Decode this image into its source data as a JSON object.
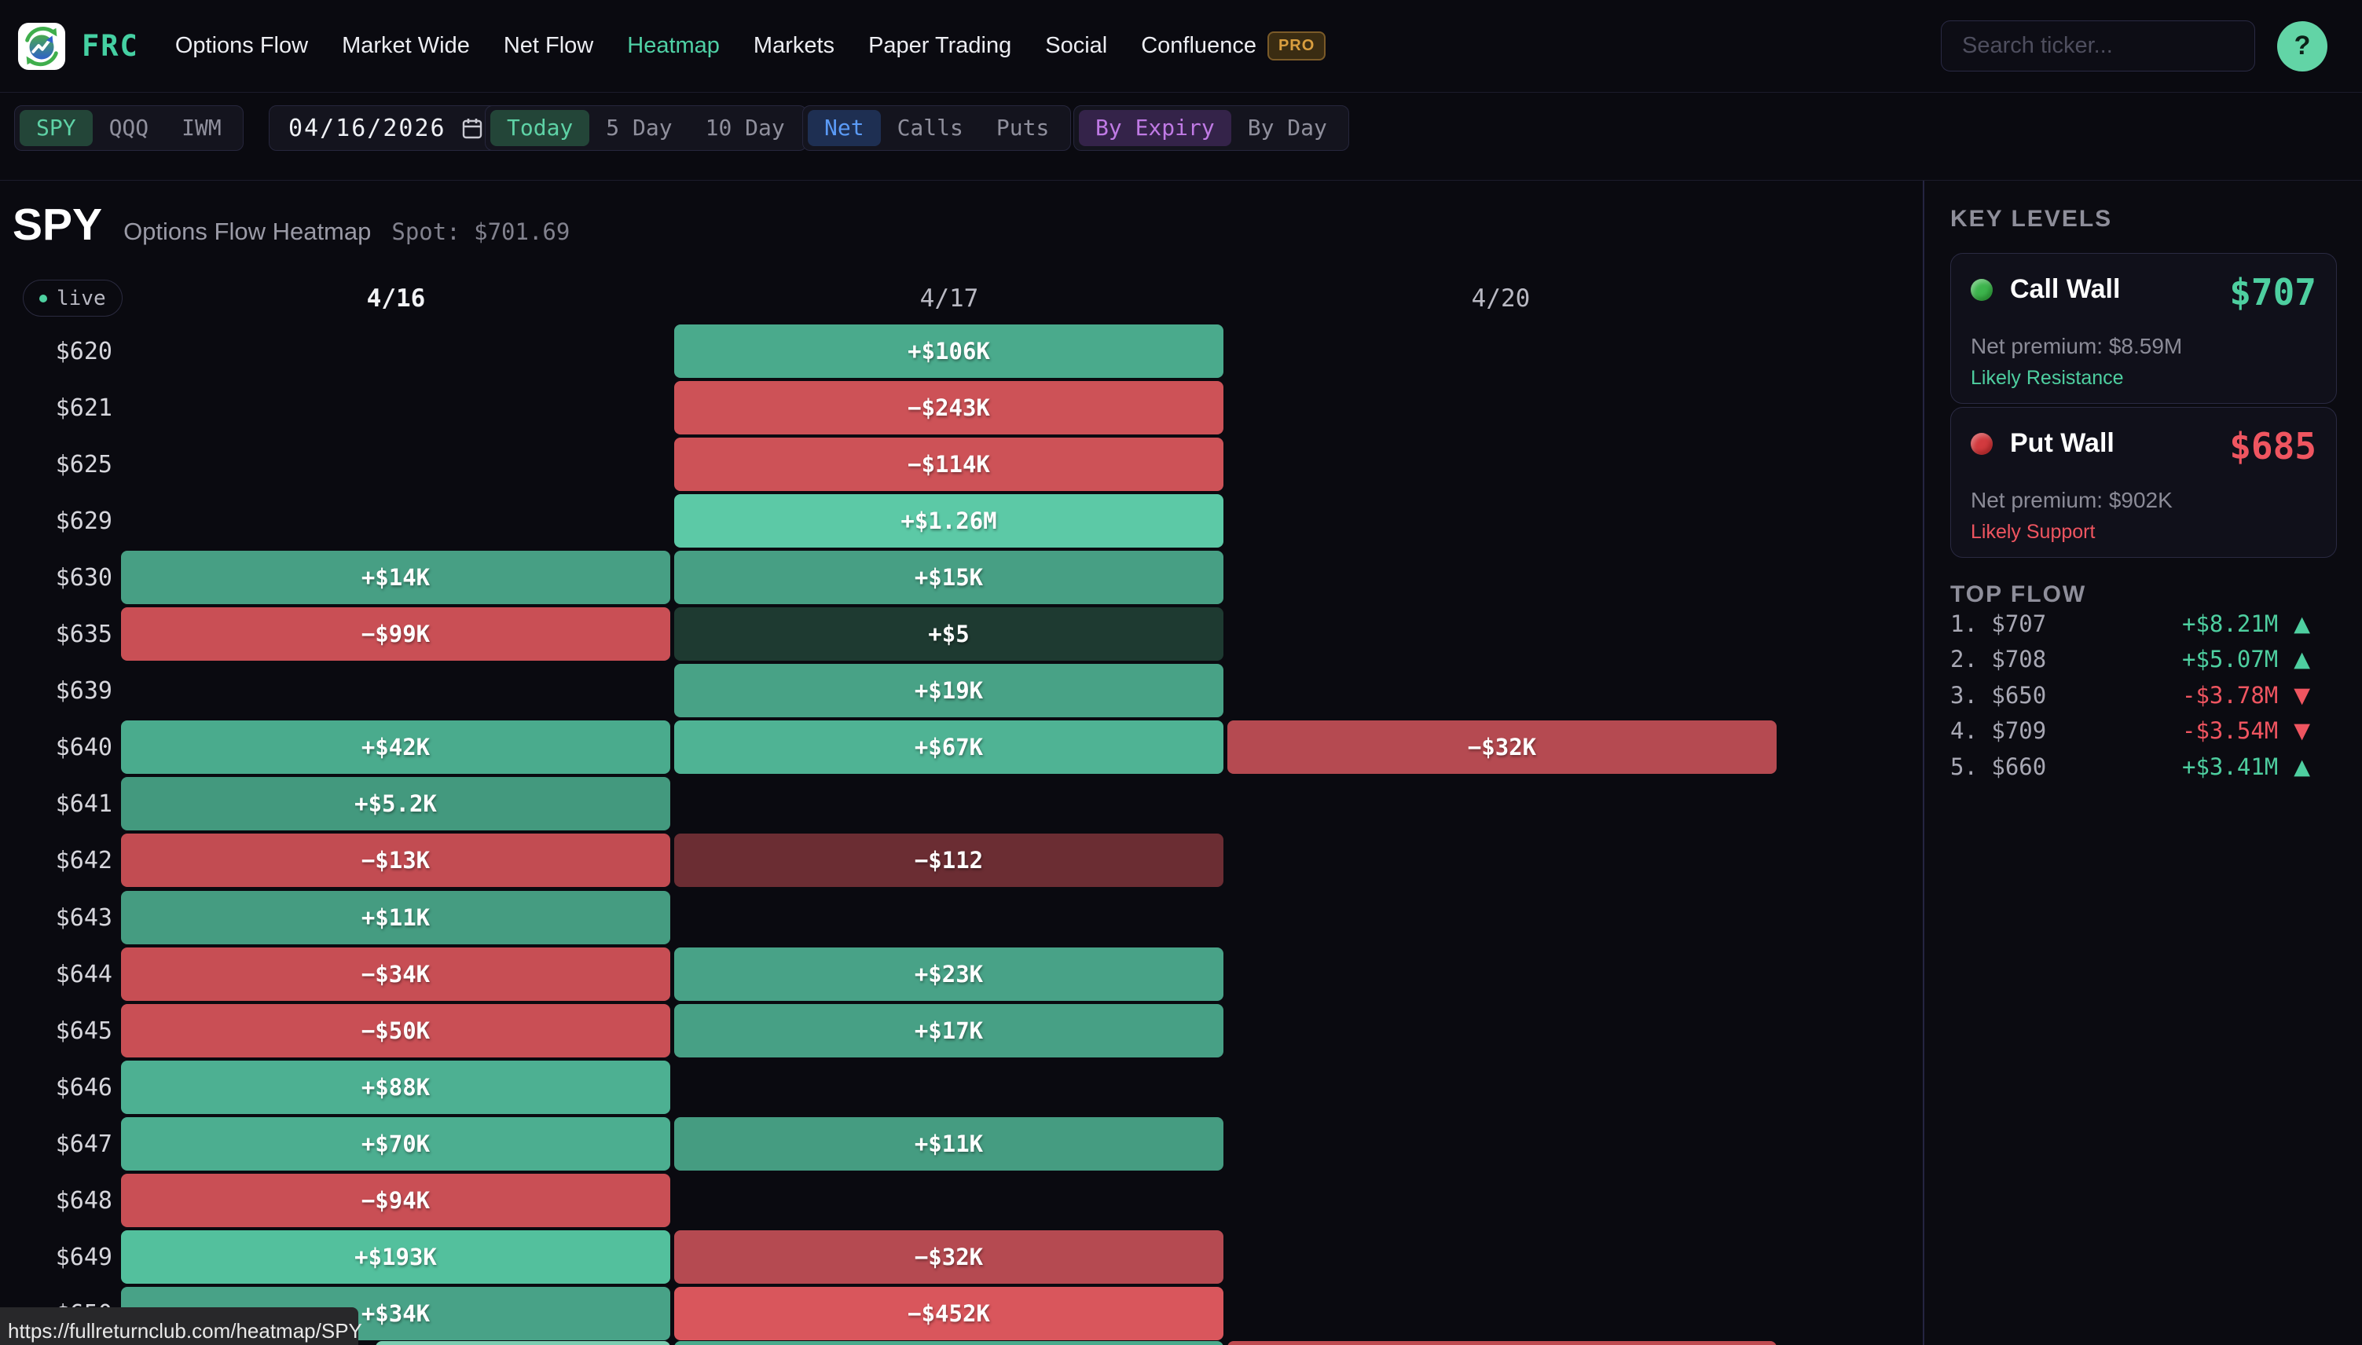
{
  "nav": {
    "brand": "FRC",
    "items": [
      {
        "label": "Options Flow"
      },
      {
        "label": "Market Wide"
      },
      {
        "label": "Net Flow"
      },
      {
        "label": "Heatmap",
        "active": true
      },
      {
        "label": "Markets"
      },
      {
        "label": "Paper Trading"
      },
      {
        "label": "Social"
      },
      {
        "label": "Confluence",
        "pro": true
      }
    ],
    "pro_badge": "PRO",
    "search_placeholder": "Search ticker...",
    "help_label": "?",
    "accent_color": "#4fd1a5"
  },
  "toolbar": {
    "ticker_tabs": {
      "accent": "#5ed2a6",
      "active_bg": "#234538",
      "items": [
        {
          "label": "SPY",
          "active": true
        },
        {
          "label": "QQQ"
        },
        {
          "label": "IWM"
        }
      ]
    },
    "date": {
      "value": "04/16/2026"
    },
    "range_tabs": {
      "accent": "#5ed2a6",
      "active_bg": "#234538",
      "items": [
        {
          "label": "Today",
          "active": true
        },
        {
          "label": "5 Day"
        },
        {
          "label": "10 Day"
        }
      ]
    },
    "type_tabs": {
      "accent": "#5b9bf7",
      "active_bg": "#1e2f52",
      "items": [
        {
          "label": "Net",
          "active": true
        },
        {
          "label": "Calls"
        },
        {
          "label": "Puts"
        }
      ]
    },
    "group_tabs": {
      "accent": "#c07ae5",
      "active_bg": "#342349",
      "items": [
        {
          "label": "By Expiry",
          "active": true
        },
        {
          "label": "By Day"
        }
      ]
    }
  },
  "heatmap": {
    "symbol": "SPY",
    "subtitle": "Options Flow Heatmap",
    "spot": "Spot: $701.69",
    "live": "live",
    "columns": [
      {
        "label": "4/16",
        "current": true
      },
      {
        "label": "4/17"
      },
      {
        "label": "4/20"
      }
    ],
    "rows": [
      {
        "strike": "$620",
        "cells": [
          null,
          {
            "text": "+$106K",
            "bg": "#4aaa8c"
          },
          null
        ]
      },
      {
        "strike": "$621",
        "cells": [
          null,
          {
            "text": "−$243K",
            "bg": "#cd5257"
          },
          null
        ]
      },
      {
        "strike": "$625",
        "cells": [
          null,
          {
            "text": "−$114K",
            "bg": "#cd5257"
          },
          null
        ]
      },
      {
        "strike": "$629",
        "cells": [
          null,
          {
            "text": "+$1.26M",
            "bg": "#5cc9a6"
          },
          null
        ]
      },
      {
        "strike": "$630",
        "cells": [
          {
            "text": "+$14K",
            "bg": "#479f84"
          },
          {
            "text": "+$15K",
            "bg": "#479f84"
          },
          null
        ]
      },
      {
        "strike": "$635",
        "cells": [
          {
            "text": "−$99K",
            "bg": "#c94f55"
          },
          {
            "text": "+$5",
            "bg": "#1e3a31"
          },
          null
        ]
      },
      {
        "strike": "$639",
        "cells": [
          null,
          {
            "text": "+$19K",
            "bg": "#48a286"
          },
          null
        ]
      },
      {
        "strike": "$640",
        "cells": [
          {
            "text": "+$42K",
            "bg": "#4aab8d"
          },
          {
            "text": "+$67K",
            "bg": "#4fb394"
          },
          {
            "text": "−$32K",
            "bg": "#b54a51"
          }
        ]
      },
      {
        "strike": "$641",
        "cells": [
          {
            "text": "+$5.2K",
            "bg": "#43997e"
          },
          null,
          null
        ]
      },
      {
        "strike": "$642",
        "cells": [
          {
            "text": "−$13K",
            "bg": "#c24c52"
          },
          {
            "text": "−$112",
            "bg": "#6b2d33"
          },
          null
        ]
      },
      {
        "strike": "$643",
        "cells": [
          {
            "text": "+$11K",
            "bg": "#459c81"
          },
          null,
          null
        ]
      },
      {
        "strike": "$644",
        "cells": [
          {
            "text": "−$34K",
            "bg": "#c74e54"
          },
          {
            "text": "+$23K",
            "bg": "#48a287"
          },
          null
        ]
      },
      {
        "strike": "$645",
        "cells": [
          {
            "text": "−$50K",
            "bg": "#c94f55"
          },
          {
            "text": "+$17K",
            "bg": "#47a085"
          },
          null
        ]
      },
      {
        "strike": "$646",
        "cells": [
          {
            "text": "+$88K",
            "bg": "#4db092"
          },
          null,
          null
        ]
      },
      {
        "strike": "$647",
        "cells": [
          {
            "text": "+$70K",
            "bg": "#4cae90"
          },
          {
            "text": "+$11K",
            "bg": "#459c81"
          },
          null
        ]
      },
      {
        "strike": "$648",
        "cells": [
          {
            "text": "−$94K",
            "bg": "#c94f55"
          },
          null,
          null
        ]
      },
      {
        "strike": "$649",
        "cells": [
          {
            "text": "+$193K",
            "bg": "#53c09d"
          },
          {
            "text": "−$32K",
            "bg": "#b54a51"
          },
          null
        ]
      },
      {
        "strike": "$650",
        "cells": [
          {
            "text": "+$34K",
            "bg": "#48a287"
          },
          {
            "text": "−$452K",
            "bg": "#d9565c"
          },
          null
        ]
      }
    ],
    "partial_row": {
      "cells": [
        {
          "bg": "#7bcdb1"
        },
        {
          "bg": "#4aaa8c"
        },
        {
          "bg": "#c04b51"
        }
      ]
    }
  },
  "key_levels": {
    "title": "KEY LEVELS",
    "cards": [
      {
        "title": "Call Wall",
        "price": "$707",
        "premium": "Net premium: $8.59M",
        "note": "Likely Resistance",
        "dot_color": "#3db54d",
        "accent": "#4ecfa0"
      },
      {
        "title": "Put Wall",
        "price": "$685",
        "premium": "Net premium: $902K",
        "note": "Likely Support",
        "dot_color": "#d23a3e",
        "accent": "#ef5560"
      }
    ]
  },
  "top_flow": {
    "title": "TOP FLOW",
    "up_color": "#4ecfa0",
    "down_color": "#ef5560",
    "up_icon": "▲",
    "down_icon": "▼",
    "items": [
      {
        "rank": "1.",
        "strike": "$707",
        "value": "+$8.21M",
        "direction": "up"
      },
      {
        "rank": "2.",
        "strike": "$708",
        "value": "+$5.07M",
        "direction": "up"
      },
      {
        "rank": "3.",
        "strike": "$650",
        "value": "-$3.78M",
        "direction": "down"
      },
      {
        "rank": "4.",
        "strike": "$709",
        "value": "-$3.54M",
        "direction": "down"
      },
      {
        "rank": "5.",
        "strike": "$660",
        "value": "+$3.41M",
        "direction": "up"
      }
    ]
  },
  "status_bar": {
    "url": "https://fullreturnclub.com/heatmap/SPY"
  }
}
